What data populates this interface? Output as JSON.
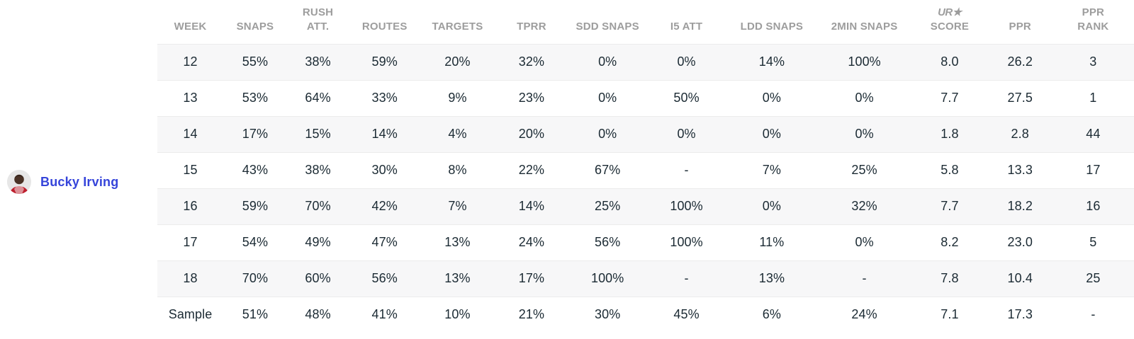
{
  "player": {
    "name": "Bucky Irving",
    "avatar": "player-headshot"
  },
  "table": {
    "columns": [
      {
        "id": "week",
        "label": "WEEK"
      },
      {
        "id": "snaps",
        "label": "SNAPS"
      },
      {
        "id": "rush-att",
        "label": "RUSH\nATT."
      },
      {
        "id": "routes",
        "label": "ROUTES"
      },
      {
        "id": "targets",
        "label": "TARGETS"
      },
      {
        "id": "tprr",
        "label": "TPRR"
      },
      {
        "id": "sdd-snaps",
        "label": "SDD SNAPS"
      },
      {
        "id": "i5-att",
        "label": "I5 ATT"
      },
      {
        "id": "ldd-snaps",
        "label": "LDD SNAPS"
      },
      {
        "id": "2min-snaps",
        "label": "2MIN SNAPS"
      },
      {
        "id": "ud-score",
        "label": "SCORE",
        "logo": "UR★"
      },
      {
        "id": "ppr",
        "label": "PPR"
      },
      {
        "id": "ppr-rank",
        "label": "PPR\nRANK"
      }
    ],
    "rows": [
      [
        "12",
        "55%",
        "38%",
        "59%",
        "20%",
        "32%",
        "0%",
        "0%",
        "14%",
        "100%",
        "8.0",
        "26.2",
        "3"
      ],
      [
        "13",
        "53%",
        "64%",
        "33%",
        "9%",
        "23%",
        "0%",
        "50%",
        "0%",
        "0%",
        "7.7",
        "27.5",
        "1"
      ],
      [
        "14",
        "17%",
        "15%",
        "14%",
        "4%",
        "20%",
        "0%",
        "0%",
        "0%",
        "0%",
        "1.8",
        "2.8",
        "44"
      ],
      [
        "15",
        "43%",
        "38%",
        "30%",
        "8%",
        "22%",
        "67%",
        "-",
        "7%",
        "25%",
        "5.8",
        "13.3",
        "17"
      ],
      [
        "16",
        "59%",
        "70%",
        "42%",
        "7%",
        "14%",
        "25%",
        "100%",
        "0%",
        "32%",
        "7.7",
        "18.2",
        "16"
      ],
      [
        "17",
        "54%",
        "49%",
        "47%",
        "13%",
        "24%",
        "56%",
        "100%",
        "11%",
        "0%",
        "8.2",
        "23.0",
        "5"
      ],
      [
        "18",
        "70%",
        "60%",
        "56%",
        "13%",
        "17%",
        "100%",
        "-",
        "13%",
        "-",
        "7.8",
        "10.4",
        "25"
      ],
      [
        "Sample",
        "51%",
        "48%",
        "41%",
        "10%",
        "21%",
        "30%",
        "45%",
        "6%",
        "24%",
        "7.1",
        "17.3",
        "-"
      ]
    ]
  },
  "colors": {
    "accent_blue": "#3544da",
    "header_gray": "#9d9d9d",
    "cell_text": "#1b2a33",
    "row_stripe": "#f7f7f8",
    "row_divider": "#ececec"
  }
}
